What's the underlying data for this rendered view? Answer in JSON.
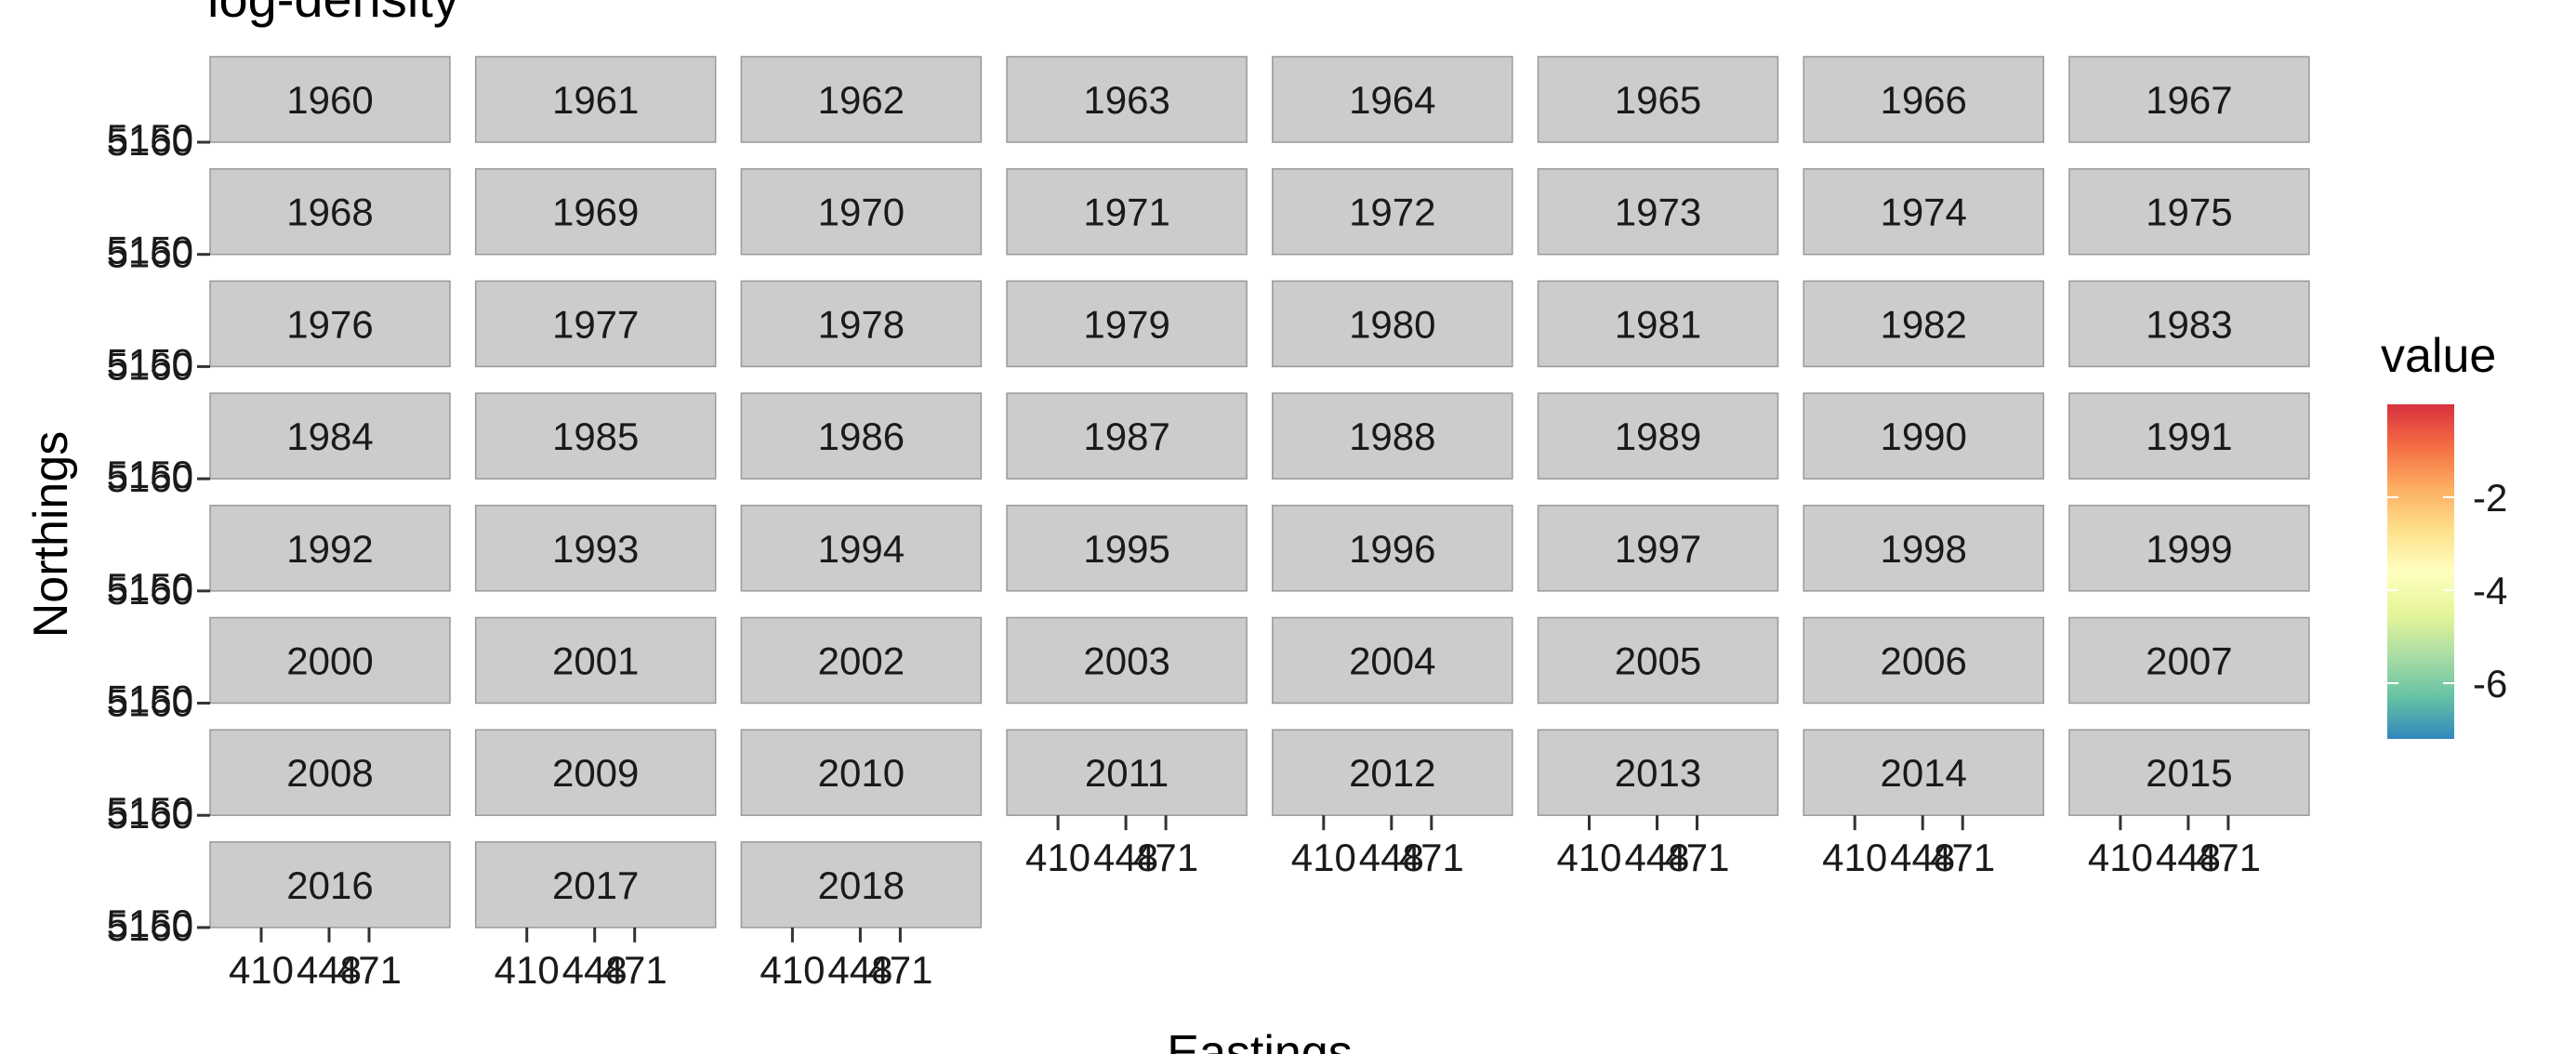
{
  "chart_data": {
    "type": "heatmap",
    "title": "log-density",
    "xlabel": "Eastings",
    "ylabel": "Northings",
    "facets": [
      "1960",
      "1961",
      "1962",
      "1963",
      "1964",
      "1965",
      "1966",
      "1967",
      "1968",
      "1969",
      "1970",
      "1971",
      "1972",
      "1973",
      "1974",
      "1975",
      "1976",
      "1977",
      "1978",
      "1979",
      "1980",
      "1981",
      "1982",
      "1983",
      "1984",
      "1985",
      "1986",
      "1987",
      "1988",
      "1989",
      "1990",
      "1991",
      "1992",
      "1993",
      "1994",
      "1995",
      "1996",
      "1997",
      "1998",
      "1999",
      "2000",
      "2001",
      "2002",
      "2003",
      "2004",
      "2005",
      "2006",
      "2007",
      "2008",
      "2009",
      "2010",
      "2011",
      "2012",
      "2013",
      "2014",
      "2015",
      "2016",
      "2017",
      "2018"
    ],
    "x_ticks": [
      "410",
      "448",
      "471"
    ],
    "y_ticks": [
      "5150",
      "5160"
    ],
    "legend": {
      "title": "value",
      "labels": [
        "-2",
        "-4",
        "-6"
      ],
      "values": [
        -2,
        -4,
        -6
      ],
      "range": [
        -7.2,
        -0.0
      ],
      "colors": [
        "#d7303f",
        "#f46d43",
        "#fdae61",
        "#fee08b",
        "#ffffbf",
        "#e6f598",
        "#abdda4",
        "#66c2a5",
        "#3288bd"
      ],
      "position": "right"
    },
    "strip_color": "#cccccc",
    "strip_border": "#999999"
  }
}
